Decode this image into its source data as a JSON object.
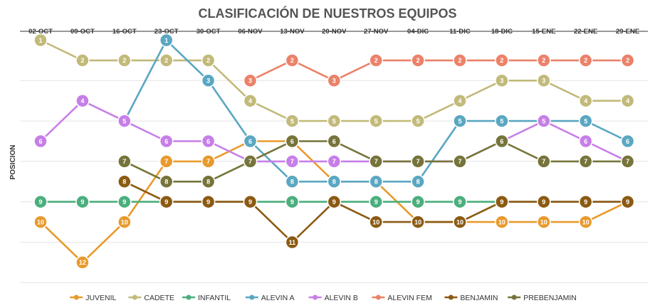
{
  "chart_data": {
    "type": "line",
    "title": "CLASIFICACIÓN DE NUESTROS EQUIPOS",
    "xlabel": "",
    "ylabel": "POSICION",
    "ylim": [
      13,
      1
    ],
    "y_reversed": true,
    "x_axis_position": "top",
    "grid": true,
    "legend_position": "bottom",
    "categories": [
      "02-OCT",
      "09-OCT",
      "16-OCT",
      "23-OCT",
      "30-OCT",
      "06-NOV",
      "13-NOV",
      "20-NOV",
      "27-NOV",
      "04-DIC",
      "11-DIC",
      "18-DIC",
      "15-ENE",
      "22-ENE",
      "29-ENE"
    ],
    "series": [
      {
        "name": "JUVENIL",
        "color": "#E89A2C",
        "values": [
          10,
          12,
          10,
          7,
          7,
          6,
          6,
          8,
          8,
          10,
          10,
          10,
          10,
          10,
          9
        ]
      },
      {
        "name": "CADETE",
        "color": "#C2BA7A",
        "values": [
          1,
          2,
          2,
          2,
          2,
          4,
          5,
          5,
          5,
          5,
          4,
          3,
          3,
          4,
          4
        ]
      },
      {
        "name": "INFANTIL",
        "color": "#4BAF7D",
        "values": [
          9,
          9,
          9,
          9,
          9,
          9,
          9,
          9,
          9,
          9,
          9,
          9,
          9,
          9,
          9
        ]
      },
      {
        "name": "ALEVIN A",
        "color": "#5AA7C2",
        "values": [
          null,
          null,
          5,
          1,
          3,
          6,
          8,
          8,
          8,
          8,
          5,
          5,
          5,
          5,
          6
        ]
      },
      {
        "name": "ALEVIN B",
        "color": "#C77FE8",
        "values": [
          6,
          4,
          5,
          6,
          6,
          7,
          7,
          7,
          7,
          7,
          7,
          6,
          5,
          6,
          7
        ]
      },
      {
        "name": "ALEVIN FEM",
        "color": "#EB8269",
        "values": [
          null,
          null,
          null,
          null,
          null,
          3,
          2,
          3,
          2,
          2,
          2,
          2,
          2,
          2,
          2
        ]
      },
      {
        "name": "BENJAMIN",
        "color": "#8B5A12",
        "values": [
          null,
          null,
          8,
          9,
          9,
          9,
          11,
          9,
          10,
          10,
          10,
          9,
          9,
          9,
          9
        ]
      },
      {
        "name": "PREBENJAMIN",
        "color": "#76743A",
        "values": [
          null,
          null,
          7,
          8,
          8,
          7,
          6,
          6,
          7,
          7,
          7,
          6,
          7,
          7,
          7
        ]
      }
    ]
  }
}
